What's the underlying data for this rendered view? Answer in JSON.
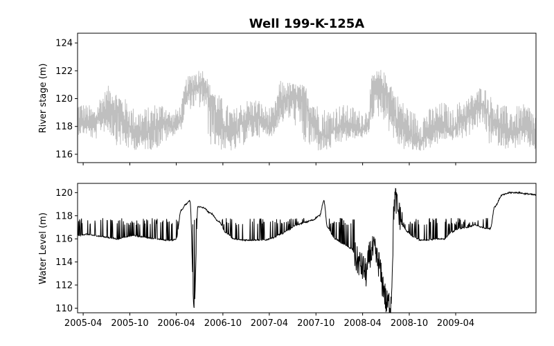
{
  "figure": {
    "title": "Well 199-K-125A"
  },
  "chart_data": [
    {
      "type": "line",
      "title": "Well 199-K-125A",
      "xlabel": "",
      "ylabel": "River stage (m)",
      "ylim": [
        115.4,
        124.7
      ],
      "yticks": [
        116,
        118,
        120,
        122,
        124
      ],
      "xlim": [
        "2005-03-10",
        "2010-02-10"
      ],
      "xticks": [
        "2005-04",
        "2005-10",
        "2006-04",
        "2006-10",
        "2007-04",
        "2007-10",
        "2008-04",
        "2008-10",
        "2009-04"
      ],
      "show_x_tick_labels": false,
      "grid": false,
      "series": [
        {
          "color": "#bfbfbf",
          "style": "dense daily fluctuation",
          "x": [
            "2005-03-10",
            "2005-04-15",
            "2005-05-15",
            "2005-06-15",
            "2005-07-15",
            "2005-08-15",
            "2005-09-15",
            "2005-10-15",
            "2005-11-15",
            "2005-12-15",
            "2006-01-15",
            "2006-02-15",
            "2006-03-15",
            "2006-04-15",
            "2006-05-15",
            "2006-06-15",
            "2006-07-15",
            "2006-08-15",
            "2006-09-15",
            "2006-10-15",
            "2006-11-15",
            "2006-12-15",
            "2007-01-15",
            "2007-02-15",
            "2007-03-15",
            "2007-04-15",
            "2007-05-15",
            "2007-06-15",
            "2007-07-15",
            "2007-08-15",
            "2007-09-15",
            "2007-10-15",
            "2007-11-15",
            "2007-12-15",
            "2008-01-15",
            "2008-02-15",
            "2008-03-15",
            "2008-04-15",
            "2008-05-15",
            "2008-06-15",
            "2008-07-15",
            "2008-08-15",
            "2008-09-15",
            "2008-10-15",
            "2008-11-15",
            "2008-12-15",
            "2009-01-15",
            "2009-02-15",
            "2009-03-15",
            "2009-04-15",
            "2009-05-15",
            "2009-06-15",
            "2009-07-15",
            "2009-08-15",
            "2009-09-15",
            "2009-10-15",
            "2009-11-15",
            "2009-12-15",
            "2010-01-15",
            "2010-02-10"
          ],
          "y": [
            118.3,
            118.2,
            118.0,
            119.0,
            119.5,
            119.0,
            118.2,
            117.6,
            117.4,
            117.6,
            118.0,
            118.3,
            118.0,
            118.4,
            120.4,
            120.7,
            121.3,
            119.8,
            118.4,
            117.6,
            117.4,
            118.2,
            118.5,
            118.6,
            118.1,
            118.0,
            119.6,
            120.1,
            120.2,
            119.8,
            118.6,
            117.5,
            117.3,
            117.8,
            118.0,
            117.9,
            117.7,
            117.9,
            120.4,
            120.9,
            120.2,
            118.5,
            117.8,
            117.2,
            117.0,
            117.4,
            117.8,
            118.0,
            117.6,
            118.3,
            118.6,
            119.2,
            119.6,
            118.7,
            118.0,
            117.6,
            117.5,
            117.8,
            117.7,
            117.0
          ],
          "y_low": [
            117.4,
            117.4,
            117.0,
            117.6,
            117.3,
            116.6,
            116.3,
            116.3,
            116.3,
            116.3,
            116.4,
            116.8,
            117.3,
            117.6,
            119.2,
            119.3,
            119.2,
            116.6,
            116.3,
            116.2,
            116.2,
            116.6,
            117.0,
            117.2,
            117.3,
            117.3,
            118.2,
            118.4,
            118.0,
            116.6,
            116.3,
            116.2,
            116.2,
            116.6,
            116.8,
            117.0,
            117.2,
            117.1,
            118.6,
            118.6,
            117.6,
            116.5,
            116.3,
            116.2,
            116.2,
            116.4,
            116.6,
            117.0,
            117.0,
            117.0,
            117.2,
            117.8,
            118.0,
            116.6,
            116.6,
            116.4,
            116.4,
            116.6,
            116.4,
            116.3
          ],
          "y_high": [
            119.9,
            119.6,
            119.4,
            120.4,
            121.0,
            120.5,
            120.0,
            119.4,
            119.3,
            119.4,
            119.7,
            119.7,
            119.0,
            119.5,
            121.6,
            122.2,
            122.1,
            121.0,
            120.3,
            119.6,
            119.3,
            119.8,
            120.0,
            120.0,
            119.5,
            119.4,
            121.3,
            121.2,
            121.1,
            121.0,
            120.2,
            119.5,
            119.3,
            119.5,
            119.6,
            119.5,
            119.2,
            119.3,
            122.0,
            122.1,
            121.3,
            120.3,
            119.7,
            119.1,
            119.0,
            119.3,
            119.6,
            119.8,
            119.2,
            119.8,
            120.1,
            120.5,
            121.0,
            120.2,
            119.8,
            119.5,
            119.4,
            119.6,
            119.6,
            119.0
          ]
        }
      ]
    },
    {
      "type": "line",
      "xlabel": "",
      "ylabel": "Water Level (m)",
      "ylim": [
        109.6,
        120.8
      ],
      "yticks": [
        110,
        112,
        114,
        116,
        118,
        120
      ],
      "xlim": [
        "2005-03-10",
        "2010-02-10"
      ],
      "xticks": [
        "2005-04",
        "2005-10",
        "2006-04",
        "2006-10",
        "2007-04",
        "2007-10",
        "2008-04",
        "2008-10",
        "2009-04"
      ],
      "show_x_tick_labels": true,
      "grid": false,
      "series": [
        {
          "color": "#000000",
          "x": [
            "2005-03-10",
            "2005-04-15",
            "2005-05-15",
            "2005-06-15",
            "2005-07-15",
            "2005-08-15",
            "2005-09-15",
            "2005-10-15",
            "2005-11-15",
            "2005-12-15",
            "2006-01-15",
            "2006-02-15",
            "2006-03-15",
            "2006-04-01",
            "2006-04-20",
            "2006-05-10",
            "2006-05-25",
            "2006-06-10",
            "2006-06-25",
            "2006-07-15",
            "2006-08-15",
            "2006-09-15",
            "2006-10-15",
            "2006-11-15",
            "2006-12-15",
            "2007-01-15",
            "2007-02-15",
            "2007-03-15",
            "2007-04-15",
            "2007-05-15",
            "2007-06-15",
            "2007-07-15",
            "2007-08-15",
            "2007-09-15",
            "2007-10-15",
            "2007-11-01",
            "2007-11-15",
            "2007-12-15",
            "2008-01-15",
            "2008-02-15",
            "2008-03-15",
            "2008-04-01",
            "2008-04-15",
            "2008-05-01",
            "2008-05-15",
            "2008-06-01",
            "2008-06-20",
            "2008-07-05",
            "2008-07-20",
            "2008-08-05",
            "2008-08-25",
            "2008-09-10",
            "2008-09-25",
            "2008-10-15",
            "2008-11-15",
            "2008-12-15",
            "2009-01-15",
            "2009-02-15",
            "2009-03-15",
            "2009-04-15",
            "2009-05-15",
            "2009-06-15",
            "2009-07-15",
            "2009-08-01",
            "2009-08-15",
            "2009-09-01",
            "2009-10-01",
            "2009-11-01",
            "2009-12-01",
            "2010-01-01",
            "2010-02-10"
          ],
          "y": [
            116.3,
            116.4,
            116.3,
            116.2,
            116.1,
            116.0,
            116.2,
            116.3,
            116.2,
            116.1,
            116.0,
            115.9,
            115.9,
            116.0,
            118.5,
            119.0,
            119.3,
            110.0,
            118.8,
            118.7,
            118.2,
            117.5,
            116.5,
            116.0,
            115.9,
            115.9,
            115.9,
            115.9,
            116.1,
            116.4,
            116.8,
            117.2,
            117.4,
            117.6,
            118.0,
            119.3,
            117.0,
            116.0,
            115.6,
            115.2,
            114.0,
            113.5,
            113.0,
            114.8,
            115.0,
            114.0,
            112.0,
            110.3,
            110.5,
            119.5,
            118.0,
            117.0,
            116.6,
            116.2,
            115.9,
            115.9,
            116.0,
            116.0,
            116.6,
            116.9,
            117.0,
            117.2,
            117.0,
            116.9,
            116.9,
            118.8,
            119.8,
            120.0,
            120.0,
            119.9,
            119.8
          ],
          "spikes_to": 117.8
        }
      ]
    }
  ]
}
